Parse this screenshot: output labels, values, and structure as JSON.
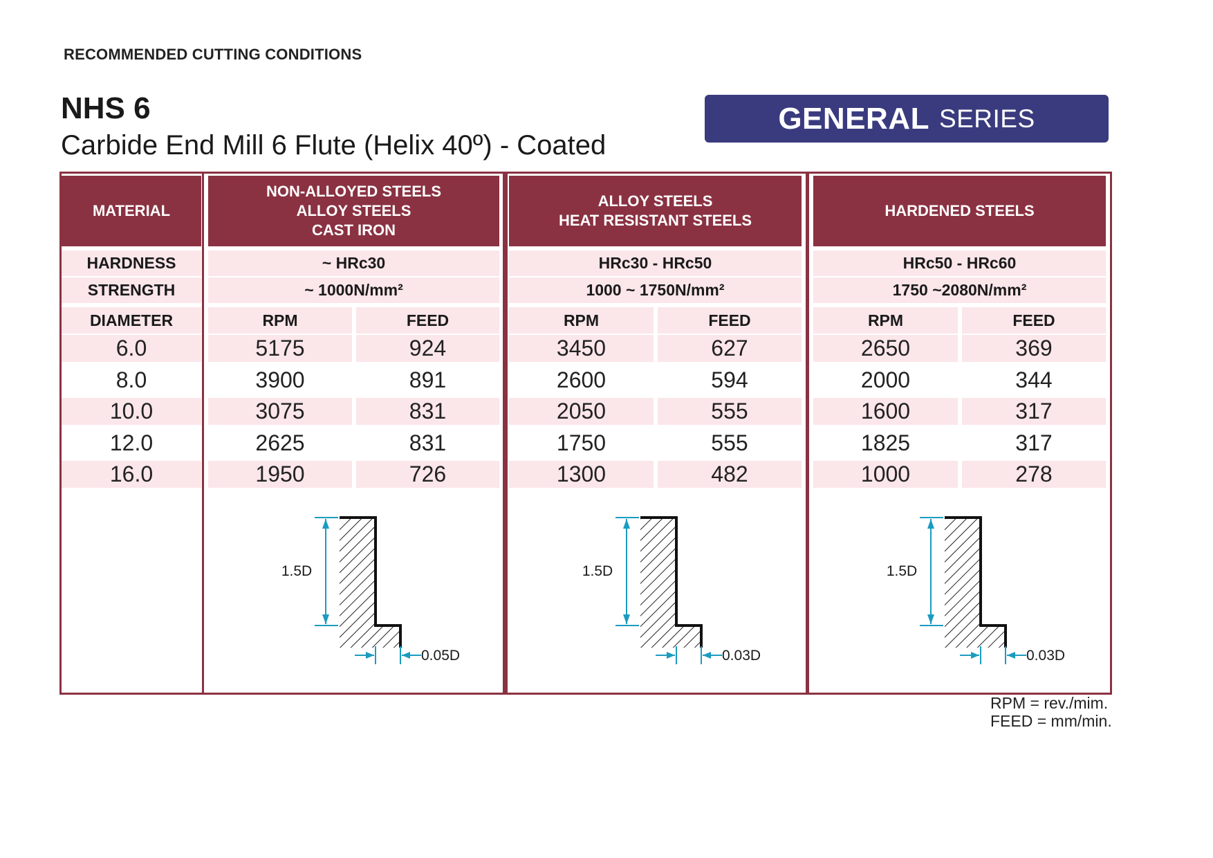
{
  "header": {
    "top_label": "RECOMMENDED CUTTING CONDITIONS",
    "model": "NHS 6",
    "subtitle": "Carbide End Mill 6 Flute (Helix 40º) - Coated",
    "series_bold": "GENERAL",
    "series_light": "SERIES"
  },
  "table": {
    "labels": {
      "material": "MATERIAL",
      "hardness": "HARDNESS",
      "strength": "STRENGTH",
      "diameter": "DIAMETER",
      "rpm": "RPM",
      "feed": "FEED"
    },
    "groups": [
      {
        "name_lines": [
          "NON-ALLOYED STEELS",
          "ALLOY STEELS",
          "CAST IRON"
        ],
        "hardness": "~ HRc30",
        "strength": "~ 1000N/mm²",
        "rpm": [
          "5175",
          "3900",
          "3075",
          "2625",
          "1950"
        ],
        "feed": [
          "924",
          "891",
          "831",
          "831",
          "726"
        ],
        "depth_label": "1.5D",
        "radial_label": "0.05D"
      },
      {
        "name_lines": [
          "ALLOY STEELS",
          "HEAT RESISTANT STEELS"
        ],
        "hardness": "HRc30 - HRc50",
        "strength": "1000 ~ 1750N/mm²",
        "rpm": [
          "3450",
          "2600",
          "2050",
          "1750",
          "1300"
        ],
        "feed": [
          "627",
          "594",
          "555",
          "555",
          "482"
        ],
        "depth_label": "1.5D",
        "radial_label": "0.03D"
      },
      {
        "name_lines": [
          "HARDENED STEELS"
        ],
        "hardness": "HRc50 - HRc60",
        "strength": "1750 ~2080N/mm²",
        "rpm": [
          "2650",
          "2000",
          "1600",
          "1825",
          "1000"
        ],
        "feed": [
          "369",
          "344",
          "317",
          "317",
          "278"
        ],
        "depth_label": "1.5D",
        "radial_label": "0.03D"
      }
    ],
    "diameters": [
      "6.0",
      "8.0",
      "10.0",
      "12.0",
      "16.0"
    ]
  },
  "footnote": {
    "line1": "RPM = rev./mim.",
    "line2": "FEED = mm/min."
  },
  "colors": {
    "header_bg": "#8a3242",
    "light_pink": "#fbe6ea",
    "banner": "#3a3b7e",
    "dimension": "#1a9cc0"
  }
}
